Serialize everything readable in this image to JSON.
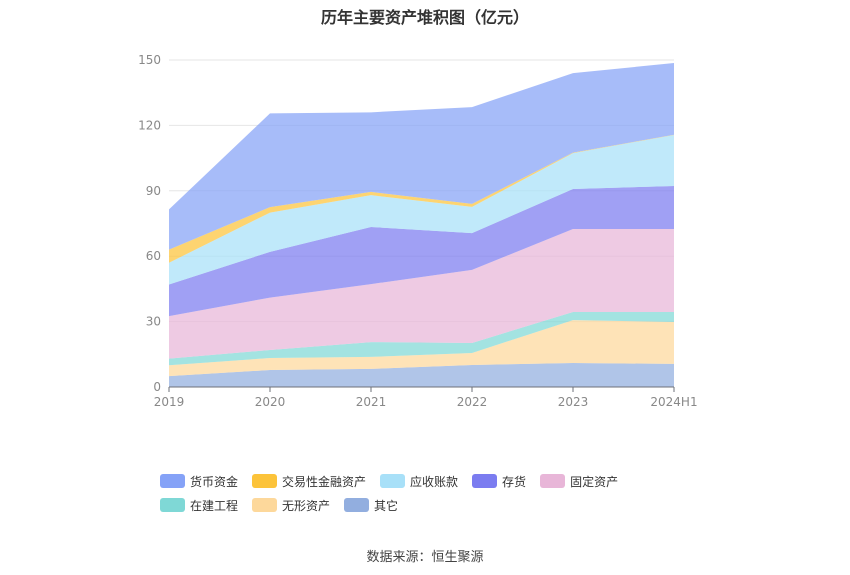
{
  "chart_data": {
    "type": "area",
    "stacked": true,
    "title": "历年主要资产堆积图（亿元）",
    "categories": [
      "2019",
      "2020",
      "2021",
      "2022",
      "2023",
      "2024H1"
    ],
    "ylim": [
      0,
      150
    ],
    "yticks": [
      0,
      30,
      60,
      90,
      120,
      150
    ],
    "grid": true,
    "legend_position": "bottom",
    "series": [
      {
        "name": "其它",
        "color": "#92aedf",
        "values": [
          5,
          7.8,
          8.3,
          10.1,
          11,
          10.6
        ]
      },
      {
        "name": "无形资产",
        "color": "#fdd89b",
        "values": [
          5,
          5.5,
          5.5,
          5.5,
          19.7,
          19.2
        ]
      },
      {
        "name": "在建工程",
        "color": "#7fd8d6",
        "values": [
          3,
          3.7,
          6.8,
          4.6,
          3.7,
          4.6
        ]
      },
      {
        "name": "固定资产",
        "color": "#e8b6d8",
        "values": [
          19.5,
          24,
          26.6,
          33.5,
          38.1,
          38.1
        ]
      },
      {
        "name": "存货",
        "color": "#7b7cf0",
        "values": [
          14.5,
          21,
          26.2,
          16.9,
          18.3,
          19.7
        ]
      },
      {
        "name": "应收账款",
        "color": "#a8e0f8",
        "values": [
          10,
          18,
          14.6,
          12,
          16.5,
          23.4
        ]
      },
      {
        "name": "交易性金融资产",
        "color": "#fcc33a",
        "values": [
          6,
          2.5,
          1.5,
          1.4,
          0.2,
          0.1
        ]
      },
      {
        "name": "货币资金",
        "color": "#85a2f7",
        "values": [
          18.5,
          43,
          36.5,
          44.4,
          36.5,
          32.9
        ]
      }
    ],
    "legend_order": [
      "货币资金",
      "交易性金融资产",
      "应收账款",
      "存货",
      "固定资产",
      "在建工程",
      "无形资产",
      "其它"
    ]
  },
  "source": "数据来源：恒生聚源"
}
